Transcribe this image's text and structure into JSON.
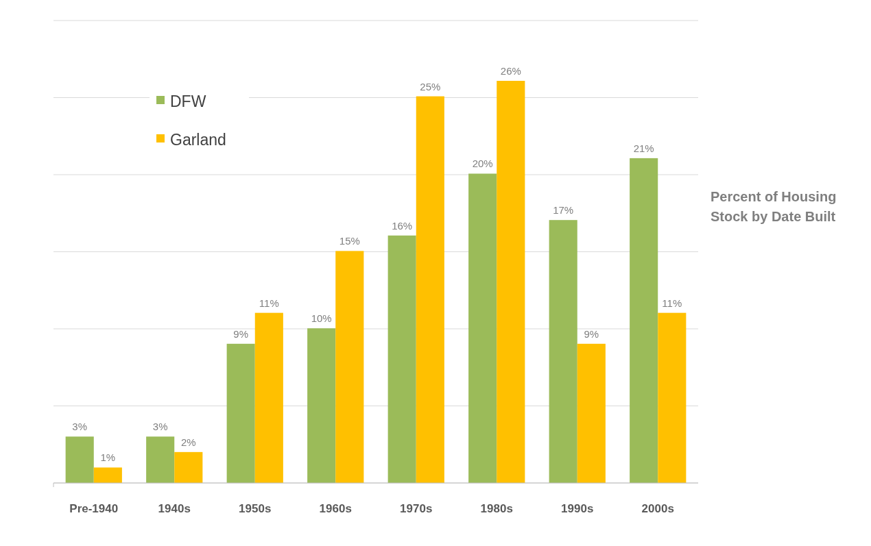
{
  "chart_data": {
    "type": "bar",
    "title": "Percent of Housing Stock by Date Built",
    "categories": [
      "Pre-1940",
      "1940s",
      "1950s",
      "1960s",
      "1970s",
      "1980s",
      "1990s",
      "2000s"
    ],
    "series": [
      {
        "name": "DFW",
        "color": "#9bbb59",
        "values": [
          3,
          3,
          9,
          10,
          16,
          20,
          17,
          21
        ],
        "value_labels": [
          "3%",
          "3%",
          "9%",
          "10%",
          "16%",
          "20%",
          "17%",
          "21%"
        ]
      },
      {
        "name": "Garland",
        "color": "#ffc000",
        "values": [
          1,
          2,
          11,
          15,
          25,
          26,
          9,
          11
        ],
        "value_labels": [
          "1%",
          "2%",
          "11%",
          "15%",
          "25%",
          "26%",
          "9%",
          "11%"
        ]
      }
    ],
    "tick_labels": "x",
    "grid": "y",
    "legend": "top left"
  }
}
